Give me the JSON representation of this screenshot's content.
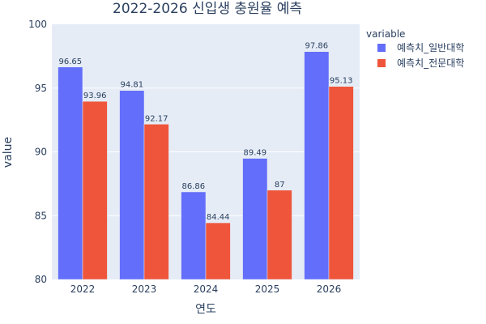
{
  "chart_data": {
    "type": "bar",
    "title": "2022-2026 신입생 충원율 예측",
    "xlabel": "연도",
    "ylabel": "value",
    "categories": [
      "2022",
      "2023",
      "2024",
      "2025",
      "2026"
    ],
    "ylim": [
      80,
      100
    ],
    "yticks": [
      "80",
      "85",
      "90",
      "95",
      "100"
    ],
    "grid": true,
    "legend_title": "variable",
    "legend_position": "right",
    "series": [
      {
        "name": "예측치_일반대학",
        "color": "#636efa",
        "values": [
          96.65,
          94.81,
          86.86,
          89.49,
          97.86
        ],
        "labels": [
          "96.65",
          "94.81",
          "86.86",
          "89.49",
          "97.86"
        ]
      },
      {
        "name": "예측치_전문대학",
        "color": "#ef553b",
        "values": [
          93.96,
          92.17,
          84.44,
          87,
          95.13
        ],
        "labels": [
          "93.96",
          "92.17",
          "84.44",
          "87",
          "95.13"
        ]
      }
    ]
  }
}
